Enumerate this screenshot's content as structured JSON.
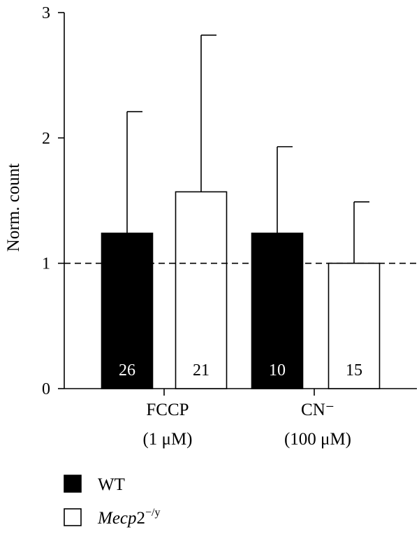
{
  "chart_data": {
    "type": "bar",
    "ylabel": "Norm. count",
    "ylim": [
      0,
      3
    ],
    "yticks": [
      0,
      1,
      2,
      3
    ],
    "reference_line": 1,
    "categories": [
      {
        "line1": "FCCP",
        "line2": "(1 μM)"
      },
      {
        "line1": "CN⁻",
        "line2": "(100 μM)"
      }
    ],
    "series": [
      {
        "name": "WT",
        "fill": "#000000",
        "n_label_color": "#ffffff",
        "values": [
          1.24,
          1.24
        ],
        "errors": [
          0.97,
          0.69
        ],
        "n": [
          "26",
          "10"
        ]
      },
      {
        "name": "Mecp2−/y",
        "fill": "#ffffff",
        "n_label_color": "#000000",
        "values": [
          1.57,
          1.0
        ],
        "errors": [
          1.25,
          0.49
        ],
        "n": [
          "21",
          "15"
        ]
      }
    ],
    "legend": {
      "placement": "bottom-left",
      "items": [
        {
          "label": "WT",
          "swatch": "#000000"
        },
        {
          "label_main": "Mecp",
          "label_sub": "2",
          "label_sup": "−/y",
          "swatch": "#ffffff"
        }
      ]
    }
  }
}
